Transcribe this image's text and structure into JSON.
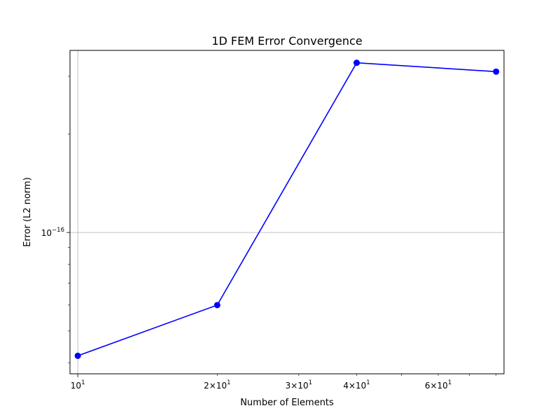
{
  "chart_data": {
    "type": "line",
    "title": "1D FEM Error Convergence",
    "xlabel": "Number of Elements",
    "ylabel": "Error (L2 norm)",
    "x_scale": "log",
    "y_scale": "log",
    "xlim": [
      9.62,
      83.2
    ],
    "ylim": [
      3.7e-17,
      3.6e-16
    ],
    "grid": true,
    "x_major_ticks": [
      {
        "value": 10,
        "base": "10",
        "exp": "1"
      }
    ],
    "x_minor_ticks": [
      {
        "value": 20,
        "mant": "2",
        "base": "10",
        "exp": "1"
      },
      {
        "value": 30,
        "mant": "3",
        "base": "10",
        "exp": "1"
      },
      {
        "value": 40,
        "mant": "4",
        "base": "10",
        "exp": "1"
      },
      {
        "value": 50,
        "mant": "",
        "base": "",
        "exp": ""
      },
      {
        "value": 60,
        "mant": "6",
        "base": "10",
        "exp": "1"
      },
      {
        "value": 70,
        "mant": "",
        "base": "",
        "exp": ""
      },
      {
        "value": 80,
        "mant": "",
        "base": "",
        "exp": ""
      }
    ],
    "y_major_ticks": [
      {
        "value": 1e-16,
        "base": "10",
        "exp": "−16"
      }
    ],
    "y_minor_ticks": [
      4e-17,
      5e-17,
      6e-17,
      7e-17,
      8e-17,
      9e-17,
      2e-16,
      3e-16
    ],
    "series": [
      {
        "color": "#0000ff",
        "marker": "circle",
        "x": [
          10,
          20,
          40,
          80
        ],
        "y": [
          4.2e-17,
          6e-17,
          3.3e-16,
          3.1e-16
        ]
      }
    ]
  }
}
